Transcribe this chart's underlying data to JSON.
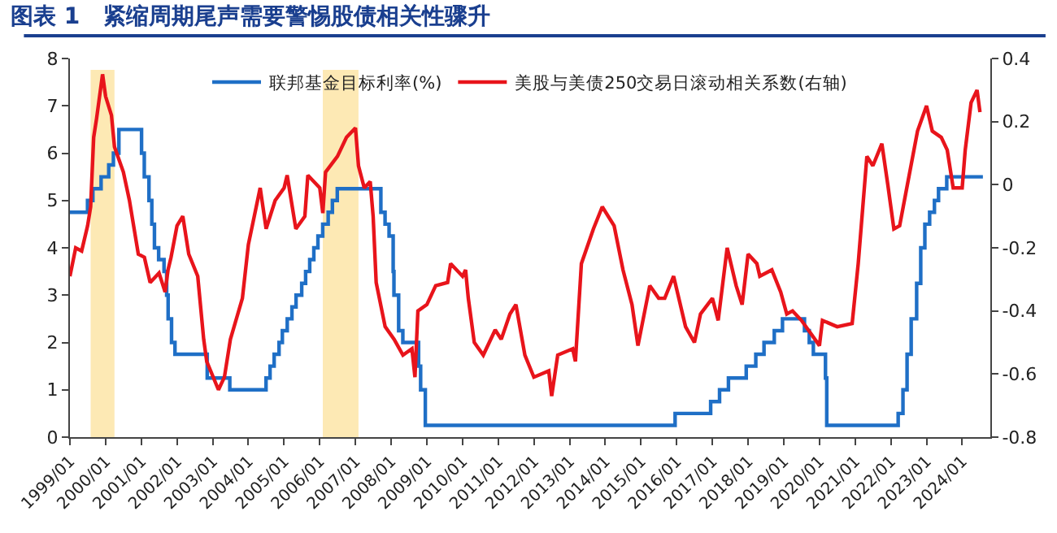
{
  "chart_data": {
    "type": "line",
    "title": "图表 1   紧缩周期尾声需要警惕股债相关性骤升",
    "series": [
      {
        "name": "联邦基金目标利率(%)",
        "type": "step",
        "color": "#1f6fc6",
        "x": [
          "1999-01-01",
          "1999-06-30",
          "1999-08-24",
          "1999-11-16",
          "2000-02-02",
          "2000-03-21",
          "2000-05-16",
          "2001-01-03",
          "2001-01-31",
          "2001-03-20",
          "2001-04-18",
          "2001-05-15",
          "2001-06-27",
          "2001-08-21",
          "2001-09-17",
          "2001-10-02",
          "2001-11-06",
          "2001-12-11",
          "2002-11-06",
          "2003-06-25",
          "2004-06-30",
          "2004-08-10",
          "2004-09-21",
          "2004-11-10",
          "2004-12-14",
          "2005-02-02",
          "2005-03-22",
          "2005-05-03",
          "2005-06-30",
          "2005-08-09",
          "2005-09-20",
          "2005-11-01",
          "2005-12-13",
          "2006-01-31",
          "2006-03-28",
          "2006-05-10",
          "2006-06-29",
          "2007-09-18",
          "2007-10-31",
          "2007-12-11",
          "2008-01-22",
          "2008-01-30",
          "2008-03-18",
          "2008-04-30",
          "2008-10-08",
          "2008-10-29",
          "2008-12-16",
          "2015-12-16",
          "2016-12-14",
          "2017-03-15",
          "2017-06-14",
          "2017-12-13",
          "2018-03-21",
          "2018-06-13",
          "2018-09-26",
          "2018-12-19",
          "2019-08-01",
          "2019-09-19",
          "2019-10-31",
          "2020-03-03",
          "2020-03-16",
          "2022-03-17",
          "2022-05-05",
          "2022-06-16",
          "2022-07-28",
          "2022-09-22",
          "2022-11-03",
          "2022-12-15",
          "2023-02-02",
          "2023-03-23",
          "2023-05-04",
          "2023-07-27",
          "2024-07-31"
        ],
        "values": [
          4.75,
          5.0,
          5.25,
          5.5,
          5.75,
          6.0,
          6.5,
          6.0,
          5.5,
          5.0,
          4.5,
          4.0,
          3.75,
          3.5,
          3.0,
          2.5,
          2.0,
          1.75,
          1.25,
          1.0,
          1.25,
          1.5,
          1.75,
          2.0,
          2.25,
          2.5,
          2.75,
          3.0,
          3.25,
          3.5,
          3.75,
          4.0,
          4.25,
          4.5,
          4.75,
          5.0,
          5.25,
          4.75,
          4.5,
          4.25,
          3.5,
          3.0,
          2.25,
          2.0,
          1.5,
          1.0,
          0.25,
          0.5,
          0.75,
          1.0,
          1.25,
          1.5,
          1.75,
          2.0,
          2.25,
          2.5,
          2.25,
          2.0,
          1.75,
          1.25,
          0.25,
          0.5,
          1.0,
          1.75,
          2.5,
          3.25,
          4.0,
          4.5,
          4.75,
          5.0,
          5.25,
          5.5,
          5.5
        ]
      },
      {
        "name": "美股与美债250交易日滚动相关系数(右轴)",
        "axis": "y2",
        "color": "#e8141b",
        "x": [
          "1999-01",
          "1999-03",
          "1999-05",
          "1999-07",
          "1999-08",
          "1999-09",
          "1999-10",
          "1999-12",
          "2000-01",
          "2000-03",
          "2000-04",
          "2000-07",
          "2000-09",
          "2000-12",
          "2001-02",
          "2001-04",
          "2001-07",
          "2001-09",
          "2001-10",
          "2001-11",
          "2002-01",
          "2002-03",
          "2002-05",
          "2002-08",
          "2002-10",
          "2002-11",
          "2003-03",
          "2003-05",
          "2003-07",
          "2003-11",
          "2004-01",
          "2004-05",
          "2004-07",
          "2004-10",
          "2005-01",
          "2005-02",
          "2005-05",
          "2005-08",
          "2005-09",
          "2006-01",
          "2006-02",
          "2006-03",
          "2006-07",
          "2006-10",
          "2007-01",
          "2007-02",
          "2007-04",
          "2007-06",
          "2007-07",
          "2007-08",
          "2007-11",
          "2008-02",
          "2008-05",
          "2008-08",
          "2008-09",
          "2008-10",
          "2009-01",
          "2009-04",
          "2009-08",
          "2009-09",
          "2010-01",
          "2010-02",
          "2010-03",
          "2010-05",
          "2010-08",
          "2010-12",
          "2011-02",
          "2011-05",
          "2011-07",
          "2011-10",
          "2012-01",
          "2012-06",
          "2012-07",
          "2012-09",
          "2013-02",
          "2013-03",
          "2013-05",
          "2013-09",
          "2013-12",
          "2014-04",
          "2014-07",
          "2014-10",
          "2014-12",
          "2015-04",
          "2015-07",
          "2015-09",
          "2015-12",
          "2016-04",
          "2016-07",
          "2016-09",
          "2017-01",
          "2017-03",
          "2017-06",
          "2017-09",
          "2017-11",
          "2018-01",
          "2018-04",
          "2018-05",
          "2018-09",
          "2018-12",
          "2019-02",
          "2019-04",
          "2019-07",
          "2019-10",
          "2020-01",
          "2020-02",
          "2020-07",
          "2020-12",
          "2021-02",
          "2021-05",
          "2021-07",
          "2021-10",
          "2021-12",
          "2022-02",
          "2022-04",
          "2022-06",
          "2022-10",
          "2023-01",
          "2023-03",
          "2023-06",
          "2023-08",
          "2023-10",
          "2024-01",
          "2024-02",
          "2024-04",
          "2024-06",
          "2024-07"
        ],
        "values": [
          -0.29,
          -0.2,
          -0.21,
          -0.13,
          -0.07,
          0.15,
          0.21,
          0.35,
          0.28,
          0.22,
          0.12,
          0.04,
          -0.05,
          -0.22,
          -0.23,
          -0.31,
          -0.28,
          -0.34,
          -0.27,
          -0.23,
          -0.13,
          -0.1,
          -0.22,
          -0.29,
          -0.49,
          -0.56,
          -0.65,
          -0.61,
          -0.49,
          -0.36,
          -0.19,
          -0.01,
          -0.14,
          -0.05,
          -0.01,
          0.03,
          -0.14,
          -0.1,
          0.03,
          -0.01,
          -0.09,
          0.04,
          0.09,
          0.15,
          0.18,
          0.06,
          -0.01,
          0.01,
          -0.1,
          -0.31,
          -0.45,
          -0.49,
          -0.54,
          -0.52,
          -0.61,
          -0.4,
          -0.38,
          -0.32,
          -0.31,
          -0.25,
          -0.29,
          -0.27,
          -0.36,
          -0.5,
          -0.54,
          -0.46,
          -0.49,
          -0.41,
          -0.38,
          -0.54,
          -0.61,
          -0.59,
          -0.67,
          -0.54,
          -0.52,
          -0.56,
          -0.25,
          -0.14,
          -0.07,
          -0.13,
          -0.27,
          -0.38,
          -0.51,
          -0.32,
          -0.36,
          -0.36,
          -0.29,
          -0.45,
          -0.5,
          -0.41,
          -0.36,
          -0.43,
          -0.2,
          -0.32,
          -0.38,
          -0.22,
          -0.25,
          -0.29,
          -0.27,
          -0.34,
          -0.41,
          -0.4,
          -0.43,
          -0.47,
          -0.51,
          -0.43,
          -0.45,
          -0.44,
          -0.25,
          0.09,
          0.06,
          0.13,
          0.0,
          -0.14,
          -0.13,
          -0.03,
          0.17,
          0.25,
          0.17,
          0.15,
          0.11,
          -0.01,
          -0.01,
          0.11,
          0.26,
          0.3,
          0.23
        ]
      }
    ],
    "xlim": [
      "1999-01-01",
      "2024-10-15"
    ],
    "xticks": [
      {
        "value": "1999-01-01",
        "label": "1999/01"
      },
      {
        "value": "2000-01-01",
        "label": "2000/01"
      },
      {
        "value": "2001-01-01",
        "label": "2001/01"
      },
      {
        "value": "2002-01-01",
        "label": "2002/01"
      },
      {
        "value": "2003-01-01",
        "label": "2003/01"
      },
      {
        "value": "2004-01-01",
        "label": "2004/01"
      },
      {
        "value": "2005-01-01",
        "label": "2005/01"
      },
      {
        "value": "2006-01-01",
        "label": "2006/01"
      },
      {
        "value": "2007-01-01",
        "label": "2007/01"
      },
      {
        "value": "2008-01-01",
        "label": "2008/01"
      },
      {
        "value": "2009-01-01",
        "label": "2009/01"
      },
      {
        "value": "2010-01-01",
        "label": "2010/01"
      },
      {
        "value": "2011-01-01",
        "label": "2011/01"
      },
      {
        "value": "2012-01-01",
        "label": "2012/01"
      },
      {
        "value": "2013-01-01",
        "label": "2013/01"
      },
      {
        "value": "2014-01-01",
        "label": "2014/01"
      },
      {
        "value": "2015-01-01",
        "label": "2015/01"
      },
      {
        "value": "2016-01-01",
        "label": "2016/01"
      },
      {
        "value": "2017-01-01",
        "label": "2017/01"
      },
      {
        "value": "2018-01-01",
        "label": "2018/01"
      },
      {
        "value": "2019-01-01",
        "label": "2019/01"
      },
      {
        "value": "2020-01-01",
        "label": "2020/01"
      },
      {
        "value": "2021-01-01",
        "label": "2021/01"
      },
      {
        "value": "2022-01-01",
        "label": "2022/01"
      },
      {
        "value": "2023-01-01",
        "label": "2023/01"
      },
      {
        "value": "2024-01-01",
        "label": "2024/01"
      }
    ],
    "ylim": [
      0,
      8
    ],
    "yticks": [
      0,
      1,
      2,
      3,
      4,
      5,
      6,
      7,
      8
    ],
    "y2lim": [
      -0.8,
      0.4
    ],
    "y2ticks": [
      -0.8,
      -0.6,
      -0.4,
      -0.2,
      0,
      0.2,
      0.4
    ],
    "bands": [
      {
        "axis": "x",
        "from": "1999-08",
        "to": "2000-04",
        "color": "#fde9b4"
      },
      {
        "axis": "x",
        "from": "2006-02",
        "to": "2007-02",
        "color": "#fde9b4"
      }
    ],
    "grid": false,
    "legend": "top",
    "marker": "none",
    "line_style": "solid"
  }
}
